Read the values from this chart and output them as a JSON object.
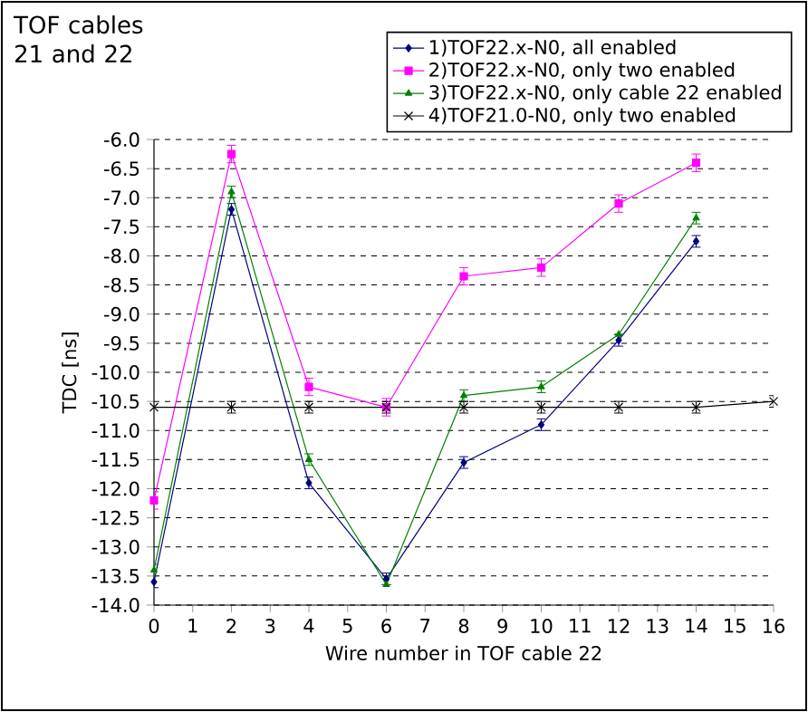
{
  "chart_data": {
    "type": "line",
    "title": "TOF cables 21 and 22",
    "xlabel": "Wire number in TOF cable 22",
    "ylabel": "TDC [ns]",
    "xlim": [
      0,
      16
    ],
    "xticks": [
      0,
      1,
      2,
      3,
      4,
      5,
      6,
      7,
      8,
      9,
      10,
      11,
      12,
      13,
      14,
      15,
      16
    ],
    "ylim": [
      -14,
      -6
    ],
    "yticks": [
      {
        "value": -14,
        "label": "-14.0"
      },
      {
        "value": -13.5,
        "label": "-13.5"
      },
      {
        "value": -13,
        "label": "-13.0"
      },
      {
        "value": -12.5,
        "label": "-12.5"
      },
      {
        "value": -12,
        "label": "-12.0"
      },
      {
        "value": -11.5,
        "label": "-11.5"
      },
      {
        "value": -11,
        "label": "-11.0"
      },
      {
        "value": -10.5,
        "label": "-10.5"
      },
      {
        "value": -10,
        "label": "-10.0"
      },
      {
        "value": -9.5,
        "label": "-9.5"
      },
      {
        "value": -9,
        "label": "-9.0"
      },
      {
        "value": -8.5,
        "label": "-8.5"
      },
      {
        "value": -8,
        "label": "-8.0"
      },
      {
        "value": -7.5,
        "label": "-7.5"
      },
      {
        "value": -7,
        "label": "-7.0"
      },
      {
        "value": -6.5,
        "label": "-6.5"
      },
      {
        "value": -6,
        "label": "-6.0"
      }
    ],
    "grid": "y",
    "legend": "top right",
    "series": [
      {
        "name": "1)TOF22.x-N0, all enabled",
        "color": "#000080",
        "marker": "diamond",
        "x": [
          0,
          2,
          4,
          6,
          8,
          10,
          12,
          14
        ],
        "values": [
          -13.6,
          -7.2,
          -11.9,
          -13.55,
          -11.55,
          -10.9,
          -9.45,
          -7.75
        ],
        "errors": [
          0.1,
          0.1,
          0.1,
          0.1,
          0.1,
          0.1,
          0.1,
          0.1
        ]
      },
      {
        "name": "2)TOF22.x-N0, only two enabled",
        "color": "#ff00ff",
        "marker": "square",
        "x": [
          0,
          2,
          4,
          6,
          8,
          10,
          12,
          14
        ],
        "values": [
          -12.2,
          -6.25,
          -10.25,
          -10.6,
          -8.35,
          -8.2,
          -7.1,
          -6.4
        ],
        "errors": [
          0.15,
          0.15,
          0.15,
          0.15,
          0.15,
          0.15,
          0.15,
          0.15
        ]
      },
      {
        "name": "3)TOF22.x-N0, only cable 22 enabled",
        "color": "#008000",
        "marker": "triangle",
        "x": [
          0,
          2,
          4,
          6,
          8,
          10,
          12,
          14
        ],
        "values": [
          -13.4,
          -6.9,
          -11.5,
          -13.65,
          -10.4,
          -10.25,
          -9.35,
          -7.35
        ],
        "errors": [
          0.1,
          0.1,
          0.1,
          null,
          0.1,
          0.1,
          null,
          0.1
        ]
      },
      {
        "name": "4)TOF21.0-N0, only two enabled",
        "color": "#000000",
        "marker": "cross",
        "x": [
          0,
          2,
          4,
          6,
          8,
          10,
          12,
          14,
          16
        ],
        "values": [
          -10.6,
          -10.6,
          -10.6,
          -10.6,
          -10.6,
          -10.6,
          -10.6,
          -10.6,
          -10.5
        ],
        "errors": [
          null,
          0.1,
          0.1,
          0.1,
          0.1,
          0.1,
          0.1,
          0.1,
          0.1
        ]
      }
    ]
  }
}
